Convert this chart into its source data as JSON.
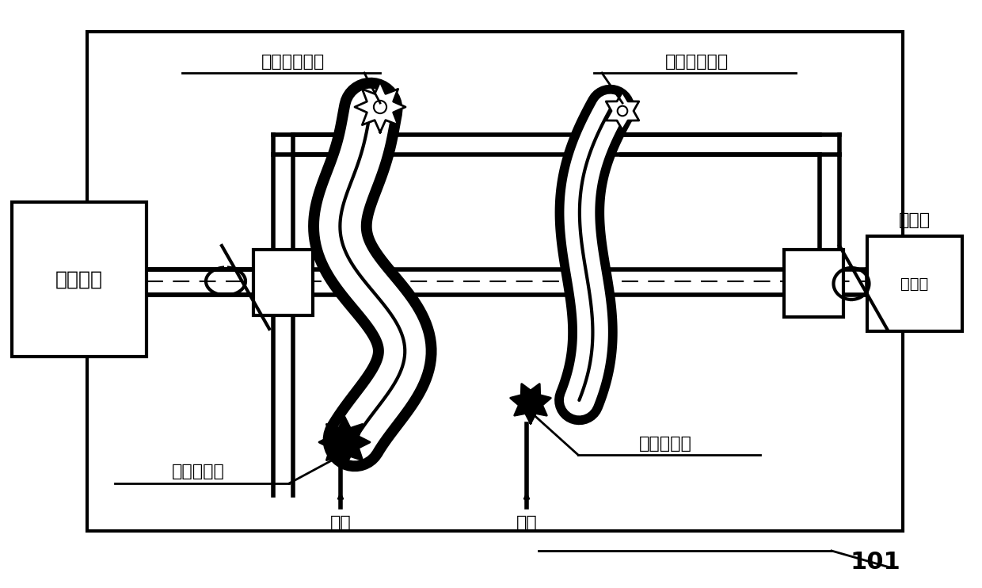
{
  "bg_color": "#ffffff",
  "title_number": "101",
  "labels": {
    "servo": "伺服系统",
    "fold_axis": "折叠轴",
    "top_left_label": "与折叠轴固定",
    "top_right_label": "与折叠轴固定",
    "bottom_left_label": "与台架固定",
    "bottom_right_label": "与台架固定",
    "oil_path": "油路",
    "air_path": "气路"
  },
  "figsize": [
    12.4,
    7.42
  ],
  "dpi": 100
}
